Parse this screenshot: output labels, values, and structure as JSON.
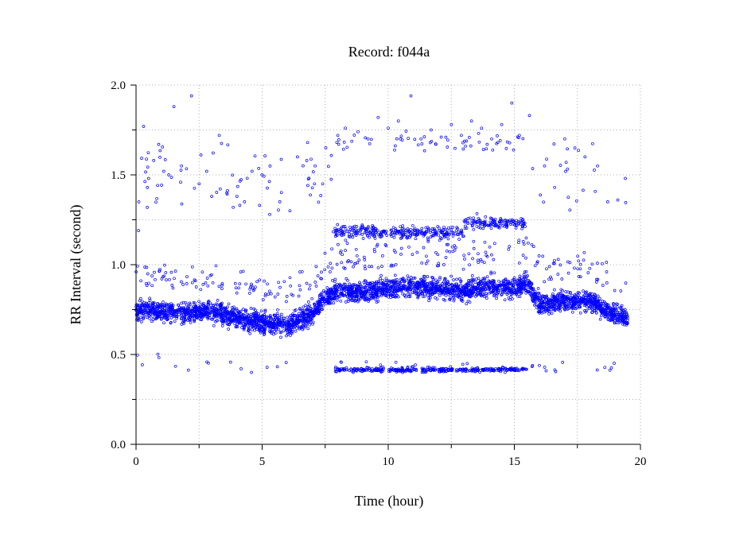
{
  "chart_data": {
    "type": "scatter",
    "title": "Record:  f044a",
    "xlabel": "Time (hour)",
    "ylabel": "RR Interval (second)",
    "xlim": [
      0,
      20
    ],
    "ylim": [
      0,
      2.0
    ],
    "xticks": [
      "0",
      "5",
      "10",
      "15",
      "20"
    ],
    "yticks": [
      "0.0",
      "0.5",
      "1.0",
      "1.5",
      "2.0"
    ],
    "grid": true,
    "marker": "hollow-circle",
    "colors": {
      "points": "#0000ff",
      "grid": "#b0b0b0",
      "axes": "#000000"
    },
    "series": [
      {
        "values_description_note": "",
        "baseline": [
          [
            0,
            0.75
          ],
          [
            1,
            0.74
          ],
          [
            2,
            0.73
          ],
          [
            3,
            0.74
          ],
          [
            4,
            0.7
          ],
          [
            5,
            0.68
          ],
          [
            6,
            0.66
          ],
          [
            7,
            0.73
          ],
          [
            7.5,
            0.82
          ],
          [
            8,
            0.86
          ],
          [
            9,
            0.84
          ],
          [
            10,
            0.87
          ],
          [
            11,
            0.88
          ],
          [
            12,
            0.87
          ],
          [
            13,
            0.85
          ],
          [
            14,
            0.88
          ],
          [
            15,
            0.87
          ],
          [
            15.5,
            0.9
          ],
          [
            16,
            0.78
          ],
          [
            17,
            0.8
          ],
          [
            18,
            0.8
          ],
          [
            19,
            0.72
          ],
          [
            19.5,
            0.7
          ]
        ],
        "points": [
          [
            0.1,
            1.19
          ],
          [
            0.3,
            1.77
          ],
          [
            0.5,
            1.48
          ],
          [
            0.7,
            1.58
          ],
          [
            0.9,
            1.67
          ],
          [
            1.1,
            1.52
          ],
          [
            1.3,
            1.5
          ],
          [
            1.5,
            1.88
          ],
          [
            1.8,
            1.55
          ],
          [
            2.2,
            1.94
          ],
          [
            2.5,
            1.45
          ],
          [
            2.8,
            1.52
          ],
          [
            3.0,
            1.38
          ],
          [
            3.3,
            1.72
          ],
          [
            3.6,
            1.4
          ],
          [
            4.0,
            1.38
          ],
          [
            4.3,
            1.35
          ],
          [
            4.6,
            1.52
          ],
          [
            4.9,
            1.33
          ],
          [
            5.3,
            1.28
          ],
          [
            5.7,
            1.35
          ],
          [
            6.1,
            1.3
          ],
          [
            6.4,
            1.6
          ],
          [
            6.8,
            1.68
          ],
          [
            7.1,
            1.55
          ],
          [
            7.4,
            1.45
          ],
          [
            8.0,
            1.72
          ],
          [
            8.3,
            1.76
          ],
          [
            8.8,
            1.74
          ],
          [
            9.2,
            1.7
          ],
          [
            9.6,
            1.82
          ],
          [
            10.0,
            1.76
          ],
          [
            10.4,
            1.8
          ],
          [
            10.9,
            1.94
          ],
          [
            11.3,
            1.7
          ],
          [
            11.7,
            1.75
          ],
          [
            12.1,
            1.71
          ],
          [
            12.5,
            1.78
          ],
          [
            12.9,
            1.72
          ],
          [
            13.3,
            1.8
          ],
          [
            13.7,
            1.76
          ],
          [
            14.1,
            1.7
          ],
          [
            14.5,
            1.78
          ],
          [
            14.9,
            1.9
          ],
          [
            15.2,
            1.72
          ],
          [
            15.6,
            1.83
          ],
          [
            16.2,
            1.55
          ],
          [
            16.6,
            1.43
          ],
          [
            17.0,
            1.7
          ],
          [
            17.4,
            1.65
          ],
          [
            17.8,
            1.6
          ],
          [
            18.3,
            1.55
          ],
          [
            18.7,
            1.35
          ],
          [
            19.1,
            1.36
          ],
          [
            19.4,
            1.48
          ]
        ]
      }
    ]
  }
}
